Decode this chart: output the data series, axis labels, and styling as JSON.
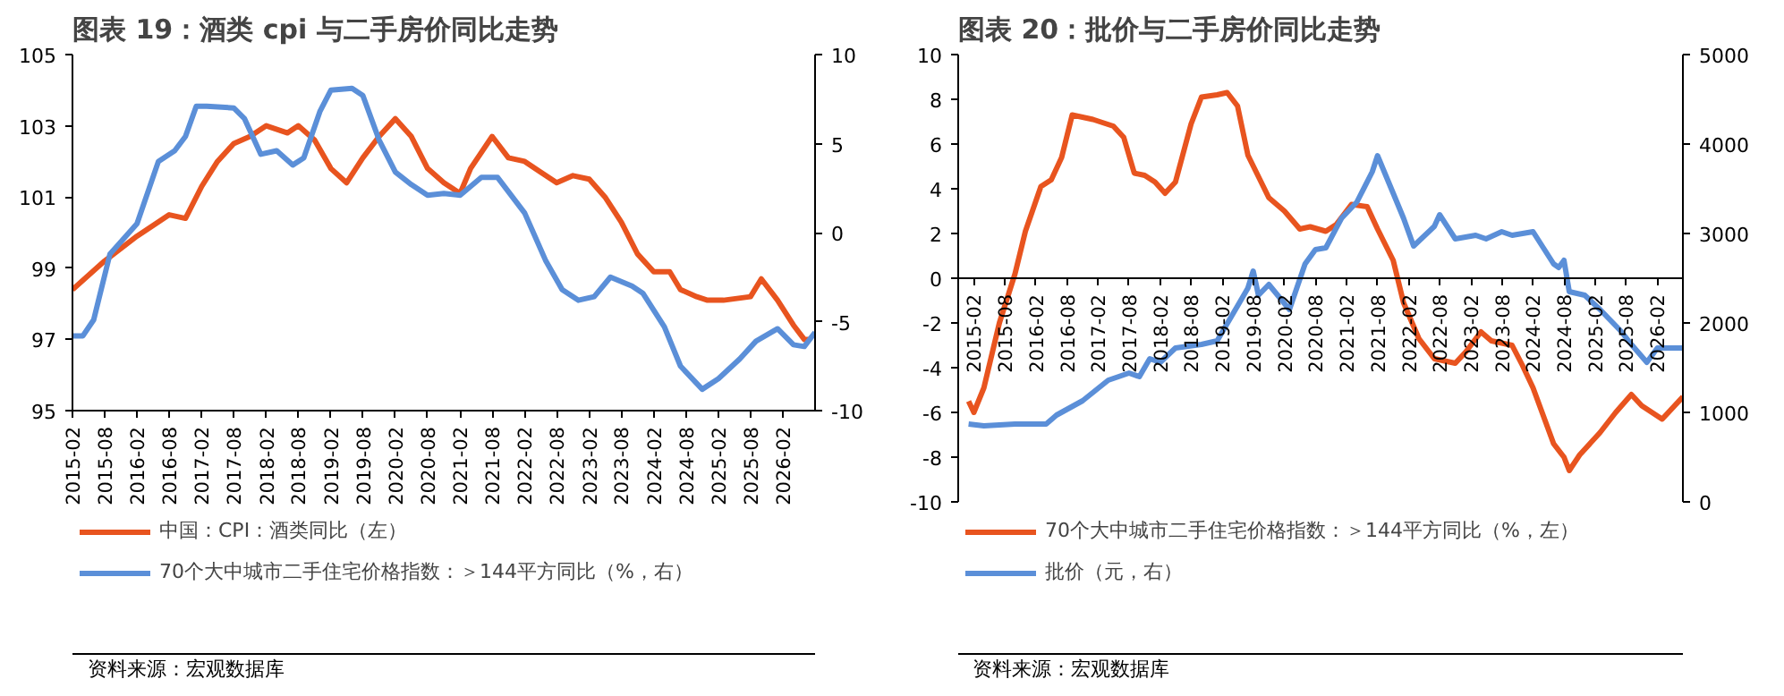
{
  "chart_data": [
    {
      "type": "line",
      "title": "图表 19：酒类 cpi 与二手房价同比走势",
      "annotations": [
        "资料来源：宏观数据库"
      ],
      "legend": "bottom",
      "grid": false,
      "xlim": [
        "2015-02",
        "2026-08"
      ],
      "xticks": [
        "2015-02",
        "2015-08",
        "2016-02",
        "2016-08",
        "2017-02",
        "2017-08",
        "2018-02",
        "2018-08",
        "2019-02",
        "2019-08",
        "2020-02",
        "2020-08",
        "2021-02",
        "2021-08",
        "2022-02",
        "2022-08",
        "2023-02",
        "2023-08",
        "2024-02",
        "2024-08",
        "2025-02",
        "2025-08",
        "2026-02"
      ],
      "ylim": [
        95,
        105
      ],
      "yticks": [
        95,
        97,
        99,
        101,
        103,
        105
      ],
      "y2lim": [
        -10,
        10
      ],
      "y2ticks": [
        -10,
        -5,
        0,
        5,
        10
      ],
      "series": [
        {
          "name": "中国：CPI：酒类同比（左）",
          "color": "#e8541f",
          "x": [
            "2015-02",
            "2015-08",
            "2016-02",
            "2016-08",
            "2016-11",
            "2017-02",
            "2017-05",
            "2017-08",
            "2017-11",
            "2018-02",
            "2018-06",
            "2018-08",
            "2018-11",
            "2019-02",
            "2019-05",
            "2019-08",
            "2019-11",
            "2020-02",
            "2020-05",
            "2020-08",
            "2020-11",
            "2021-02",
            "2021-04",
            "2021-08",
            "2021-11",
            "2022-02",
            "2022-05",
            "2022-08",
            "2022-11",
            "2023-02",
            "2023-05",
            "2023-08",
            "2023-11",
            "2024-02",
            "2024-05",
            "2024-07",
            "2024-10",
            "2024-12",
            "2025-03",
            "2025-08",
            "2025-10",
            "2026-01",
            "2026-04",
            "2026-06",
            "2026-07"
          ],
          "values": [
            98.4,
            99.2,
            99.9,
            100.5,
            100.4,
            101.3,
            102.0,
            102.5,
            102.7,
            103.0,
            102.8,
            103.0,
            102.6,
            101.8,
            101.4,
            102.1,
            102.7,
            103.2,
            102.7,
            101.8,
            101.4,
            101.1,
            101.8,
            102.7,
            102.1,
            102.0,
            101.7,
            101.4,
            101.6,
            101.5,
            101.0,
            100.3,
            99.4,
            98.9,
            98.9,
            98.4,
            98.2,
            98.1,
            98.1,
            98.2,
            98.7,
            98.1,
            97.4,
            97.0,
            97.0
          ]
        },
        {
          "name": "70个大中城市二手住宅价格指数：＞144平方同比（%，右）",
          "color": "#5b8fd8",
          "axis": "y2",
          "x": [
            "2015-02",
            "2015-04",
            "2015-06",
            "2015-09",
            "2016-02",
            "2016-06",
            "2016-09",
            "2016-11",
            "2017-01",
            "2017-03",
            "2017-08",
            "2017-10",
            "2018-01",
            "2018-04",
            "2018-07",
            "2018-09",
            "2018-12",
            "2019-02",
            "2019-06",
            "2019-08",
            "2019-11",
            "2020-02",
            "2020-05",
            "2020-08",
            "2020-11",
            "2021-02",
            "2021-06",
            "2021-09",
            "2022-02",
            "2022-06",
            "2022-09",
            "2022-12",
            "2023-03",
            "2023-06",
            "2023-10",
            "2023-12",
            "2024-04",
            "2024-07",
            "2024-11",
            "2025-02",
            "2025-06",
            "2025-09",
            "2026-01",
            "2026-04",
            "2026-06",
            "2026-08"
          ],
          "values": [
            -5.8,
            -5.8,
            -4.9,
            -1.2,
            0.5,
            4.0,
            4.6,
            5.4,
            7.1,
            7.1,
            7.0,
            6.4,
            4.4,
            4.6,
            3.8,
            4.2,
            6.8,
            8.0,
            8.1,
            7.7,
            5.2,
            3.4,
            2.7,
            2.1,
            2.2,
            2.1,
            3.1,
            3.1,
            1.1,
            -1.6,
            -3.2,
            -3.8,
            -3.6,
            -2.5,
            -3.0,
            -3.4,
            -5.3,
            -7.5,
            -8.8,
            -8.2,
            -7.1,
            -6.1,
            -5.4,
            -6.3,
            -6.4,
            -5.6
          ]
        }
      ]
    },
    {
      "type": "line",
      "title": "图表 20：批价与二手房价同比走势",
      "annotations": [
        "资料来源：宏观数据库"
      ],
      "legend": "bottom",
      "grid": false,
      "xlim": [
        "2014-11",
        "2026-07"
      ],
      "xticks": [
        "2015-02",
        "2015-08",
        "2016-02",
        "2016-08",
        "2017-02",
        "2017-08",
        "2018-02",
        "2018-08",
        "2019-02",
        "2019-08",
        "2020-02",
        "2020-08",
        "2021-02",
        "2021-08",
        "2022-02",
        "2022-08",
        "2023-02",
        "2023-08",
        "2024-02",
        "2024-08",
        "2025-02",
        "2025-08",
        "2026-02"
      ],
      "ylim": [
        -10,
        10
      ],
      "yticks": [
        -10,
        -8,
        -6,
        -4,
        -2,
        0,
        2,
        4,
        6,
        8,
        10
      ],
      "y2lim": [
        0,
        5000
      ],
      "y2ticks": [
        0,
        1000,
        2000,
        3000,
        4000,
        5000
      ],
      "series": [
        {
          "name": "70个大中城市二手住宅价格指数：＞144平方同比（%，左）",
          "color": "#e8541f",
          "x": [
            "2015-01",
            "2015-02",
            "2015-04",
            "2015-07",
            "2015-10",
            "2015-12",
            "2016-03",
            "2016-05",
            "2016-07",
            "2016-09",
            "2017-01",
            "2017-05",
            "2017-07",
            "2017-09",
            "2017-11",
            "2018-01",
            "2018-03",
            "2018-05",
            "2018-08",
            "2018-10",
            "2019-01",
            "2019-03",
            "2019-05",
            "2019-07",
            "2019-11",
            "2020-02",
            "2020-05",
            "2020-07",
            "2020-10",
            "2020-12",
            "2021-03",
            "2021-06",
            "2021-08",
            "2021-11",
            "2022-01",
            "2022-04",
            "2022-07",
            "2022-11",
            "2023-01",
            "2023-04",
            "2023-06",
            "2023-10",
            "2023-12",
            "2024-02",
            "2024-06",
            "2024-08",
            "2024-09",
            "2024-11",
            "2025-03",
            "2025-06",
            "2025-09",
            "2025-11",
            "2026-03",
            "2026-07"
          ],
          "values": [
            -5.5,
            -6.0,
            -4.9,
            -2.0,
            0.2,
            2.1,
            4.1,
            4.4,
            5.4,
            7.3,
            7.1,
            6.8,
            6.3,
            4.7,
            4.6,
            4.3,
            3.8,
            4.3,
            6.9,
            8.1,
            8.2,
            8.3,
            7.7,
            5.5,
            3.6,
            3.0,
            2.2,
            2.3,
            2.1,
            2.4,
            3.3,
            3.2,
            2.2,
            0.8,
            -1.1,
            -2.7,
            -3.6,
            -3.8,
            -3.3,
            -2.4,
            -2.8,
            -3.0,
            -3.9,
            -4.9,
            -7.4,
            -8.0,
            -8.6,
            -7.9,
            -6.9,
            -6.0,
            -5.2,
            -5.7,
            -6.3,
            -5.3
          ]
        },
        {
          "name": "批价（元，右）",
          "color": "#5b8fd8",
          "axis": "y2",
          "x": [
            "2015-01",
            "2015-04",
            "2015-10",
            "2016-04",
            "2016-06",
            "2016-11",
            "2017-04",
            "2017-08",
            "2017-10",
            "2017-12",
            "2018-02",
            "2018-05",
            "2018-10",
            "2019-01",
            "2019-05",
            "2019-07",
            "2019-08",
            "2019-09",
            "2019-11",
            "2020-03",
            "2020-06",
            "2020-08",
            "2020-10",
            "2021-01",
            "2021-04",
            "2021-07",
            "2021-08",
            "2021-11",
            "2022-01",
            "2022-03",
            "2022-07",
            "2022-08",
            "2022-11",
            "2023-03",
            "2023-05",
            "2023-08",
            "2023-10",
            "2024-02",
            "2024-06",
            "2024-07",
            "2024-08",
            "2024-09",
            "2024-12",
            "2025-03",
            "2025-07",
            "2025-09",
            "2025-12",
            "2026-02",
            "2026-07"
          ],
          "values": [
            870,
            850,
            870,
            870,
            970,
            1130,
            1360,
            1440,
            1400,
            1600,
            1560,
            1720,
            1760,
            1800,
            2190,
            2390,
            2580,
            2310,
            2430,
            2150,
            2660,
            2820,
            2840,
            3170,
            3350,
            3690,
            3870,
            3450,
            3170,
            2860,
            3080,
            3210,
            2940,
            2980,
            2940,
            3020,
            2980,
            3020,
            2660,
            2620,
            2700,
            2350,
            2310,
            2150,
            1910,
            1760,
            1560,
            1720,
            1720
          ]
        }
      ]
    }
  ]
}
